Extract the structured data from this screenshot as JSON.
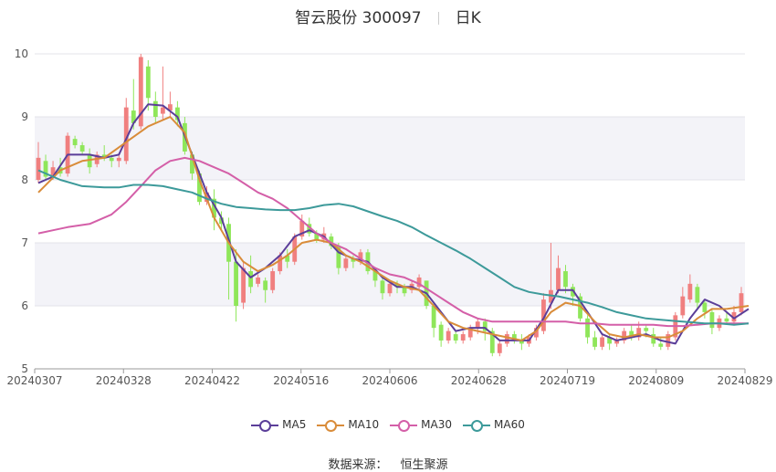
{
  "header": {
    "title": "智云股份 300097",
    "period": "日K"
  },
  "source": {
    "label": "数据来源：",
    "name": "恒生聚源"
  },
  "legend": [
    {
      "name": "MA5",
      "color": "#5b3e99"
    },
    {
      "name": "MA10",
      "color": "#d98c3a"
    },
    {
      "name": "MA30",
      "color": "#d45fa8"
    },
    {
      "name": "MA60",
      "color": "#3d9a9a"
    }
  ],
  "chart_data": {
    "type": "candlestick",
    "x_ticks": [
      "20240307",
      "20240328",
      "20240422",
      "20240516",
      "20240606",
      "20240628",
      "20240719",
      "20240809",
      "20240829"
    ],
    "y_ticks": [
      "5",
      "6",
      "7",
      "8",
      "9",
      "10"
    ],
    "ylim": [
      5,
      10
    ],
    "up_color": "#f07f7f",
    "down_color": "#8fe65a",
    "ohlc": [
      [
        8.0,
        8.35,
        7.95,
        8.6
      ],
      [
        8.3,
        8.05,
        8.0,
        8.4
      ],
      [
        8.05,
        8.2,
        8.0,
        8.3
      ],
      [
        8.2,
        8.1,
        8.05,
        8.35
      ],
      [
        8.1,
        8.7,
        8.05,
        8.75
      ],
      [
        8.65,
        8.55,
        8.5,
        8.7
      ],
      [
        8.55,
        8.45,
        8.4,
        8.6
      ],
      [
        8.4,
        8.2,
        8.1,
        8.5
      ],
      [
        8.25,
        8.4,
        8.2,
        8.45
      ],
      [
        8.4,
        8.35,
        8.3,
        8.55
      ],
      [
        8.35,
        8.3,
        8.2,
        8.4
      ],
      [
        8.3,
        8.35,
        8.2,
        8.4
      ],
      [
        8.3,
        9.15,
        8.25,
        9.3
      ],
      [
        9.1,
        8.9,
        8.8,
        9.6
      ],
      [
        8.85,
        9.95,
        8.8,
        10.0
      ],
      [
        9.8,
        9.3,
        9.1,
        9.9
      ],
      [
        9.25,
        9.0,
        8.9,
        9.4
      ],
      [
        9.05,
        9.15,
        8.95,
        9.8
      ],
      [
        9.1,
        9.2,
        9.0,
        9.4
      ],
      [
        9.15,
        8.95,
        8.85,
        9.25
      ],
      [
        8.9,
        8.45,
        8.4,
        9.0
      ],
      [
        8.4,
        8.1,
        8.0,
        8.45
      ],
      [
        8.1,
        7.65,
        7.6,
        8.15
      ],
      [
        7.65,
        7.8,
        7.6,
        7.9
      ],
      [
        7.7,
        7.4,
        7.2,
        7.85
      ],
      [
        7.4,
        7.3,
        7.2,
        7.5
      ],
      [
        7.3,
        6.7,
        6.1,
        7.4
      ],
      [
        6.7,
        6.0,
        5.75,
        6.9
      ],
      [
        6.05,
        6.6,
        5.95,
        6.7
      ],
      [
        6.55,
        6.3,
        6.2,
        6.8
      ],
      [
        6.35,
        6.45,
        6.3,
        6.5
      ],
      [
        6.4,
        6.25,
        6.05,
        6.45
      ],
      [
        6.25,
        6.55,
        6.2,
        6.6
      ],
      [
        6.55,
        6.8,
        6.5,
        6.85
      ],
      [
        6.8,
        6.7,
        6.6,
        6.9
      ],
      [
        6.7,
        7.1,
        6.65,
        7.15
      ],
      [
        7.1,
        7.35,
        7.05,
        7.45
      ],
      [
        7.3,
        7.15,
        7.1,
        7.4
      ],
      [
        7.15,
        7.05,
        7.0,
        7.2
      ],
      [
        7.05,
        7.15,
        7.0,
        7.25
      ],
      [
        7.1,
        6.95,
        6.9,
        7.15
      ],
      [
        6.95,
        6.6,
        6.5,
        7.0
      ],
      [
        6.6,
        6.75,
        6.55,
        6.8
      ],
      [
        6.75,
        6.7,
        6.6,
        6.8
      ],
      [
        6.7,
        6.85,
        6.65,
        6.9
      ],
      [
        6.85,
        6.55,
        6.5,
        6.9
      ],
      [
        6.55,
        6.4,
        6.3,
        6.6
      ],
      [
        6.4,
        6.2,
        6.1,
        6.45
      ],
      [
        6.2,
        6.35,
        6.15,
        6.4
      ],
      [
        6.35,
        6.3,
        6.2,
        6.4
      ],
      [
        6.3,
        6.2,
        6.15,
        6.35
      ],
      [
        6.25,
        6.35,
        6.2,
        6.4
      ],
      [
        6.3,
        6.45,
        6.25,
        6.5
      ],
      [
        6.4,
        6.0,
        5.95,
        6.4
      ],
      [
        6.0,
        5.65,
        5.5,
        6.05
      ],
      [
        5.7,
        5.45,
        5.35,
        5.75
      ],
      [
        5.45,
        5.6,
        5.4,
        5.65
      ],
      [
        5.55,
        5.45,
        5.4,
        5.6
      ],
      [
        5.45,
        5.55,
        5.4,
        5.6
      ],
      [
        5.5,
        5.65,
        5.45,
        5.7
      ],
      [
        5.65,
        5.75,
        5.55,
        5.8
      ],
      [
        5.75,
        5.6,
        5.45,
        5.8
      ],
      [
        5.6,
        5.25,
        5.2,
        5.65
      ],
      [
        5.25,
        5.4,
        5.2,
        5.45
      ],
      [
        5.4,
        5.55,
        5.35,
        5.6
      ],
      [
        5.55,
        5.45,
        5.4,
        5.6
      ],
      [
        5.45,
        5.4,
        5.3,
        5.55
      ],
      [
        5.4,
        5.5,
        5.35,
        5.55
      ],
      [
        5.5,
        5.65,
        5.45,
        5.7
      ],
      [
        5.6,
        6.1,
        5.55,
        6.2
      ],
      [
        6.05,
        6.25,
        5.95,
        7.0
      ],
      [
        6.25,
        6.6,
        6.2,
        6.8
      ],
      [
        6.55,
        6.3,
        6.2,
        6.65
      ],
      [
        6.3,
        6.15,
        6.0,
        6.35
      ],
      [
        6.15,
        5.8,
        5.75,
        6.2
      ],
      [
        5.8,
        5.5,
        5.4,
        5.85
      ],
      [
        5.5,
        5.35,
        5.3,
        5.6
      ],
      [
        5.35,
        5.5,
        5.3,
        5.55
      ],
      [
        5.5,
        5.4,
        5.3,
        5.55
      ],
      [
        5.4,
        5.45,
        5.35,
        5.5
      ],
      [
        5.45,
        5.6,
        5.4,
        5.65
      ],
      [
        5.6,
        5.5,
        5.45,
        5.7
      ],
      [
        5.5,
        5.65,
        5.45,
        5.75
      ],
      [
        5.65,
        5.6,
        5.5,
        5.7
      ],
      [
        5.55,
        5.4,
        5.35,
        5.65
      ],
      [
        5.4,
        5.35,
        5.3,
        5.5
      ],
      [
        5.35,
        5.55,
        5.3,
        5.6
      ],
      [
        5.5,
        5.85,
        5.45,
        5.9
      ],
      [
        5.85,
        6.15,
        5.8,
        6.3
      ],
      [
        6.1,
        6.35,
        6.05,
        6.5
      ],
      [
        6.3,
        6.05,
        5.95,
        6.35
      ],
      [
        6.05,
        5.9,
        5.8,
        6.1
      ],
      [
        5.9,
        5.65,
        5.55,
        5.95
      ],
      [
        5.65,
        5.8,
        5.6,
        5.85
      ],
      [
        5.8,
        5.75,
        5.7,
        5.9
      ],
      [
        5.75,
        5.9,
        5.7,
        6.0
      ],
      [
        5.9,
        6.2,
        5.85,
        6.3
      ]
    ],
    "series": [
      {
        "name": "MA5",
        "color": "#5b3e99",
        "values": [
          [
            0,
            7.95
          ],
          [
            2,
            8.05
          ],
          [
            4,
            8.4
          ],
          [
            7,
            8.4
          ],
          [
            9,
            8.35
          ],
          [
            11,
            8.4
          ],
          [
            13,
            8.9
          ],
          [
            15,
            9.2
          ],
          [
            17,
            9.18
          ],
          [
            19,
            9.0
          ],
          [
            21,
            8.4
          ],
          [
            23,
            7.8
          ],
          [
            25,
            7.4
          ],
          [
            27,
            6.7
          ],
          [
            29,
            6.45
          ],
          [
            31,
            6.6
          ],
          [
            33,
            6.8
          ],
          [
            35,
            7.1
          ],
          [
            37,
            7.2
          ],
          [
            39,
            7.1
          ],
          [
            41,
            6.85
          ],
          [
            43,
            6.75
          ],
          [
            45,
            6.7
          ],
          [
            47,
            6.45
          ],
          [
            49,
            6.3
          ],
          [
            51,
            6.3
          ],
          [
            53,
            6.2
          ],
          [
            55,
            5.9
          ],
          [
            57,
            5.6
          ],
          [
            59,
            5.65
          ],
          [
            61,
            5.65
          ],
          [
            63,
            5.45
          ],
          [
            65,
            5.45
          ],
          [
            67,
            5.45
          ],
          [
            69,
            5.8
          ],
          [
            71,
            6.25
          ],
          [
            73,
            6.25
          ],
          [
            75,
            5.9
          ],
          [
            77,
            5.55
          ],
          [
            79,
            5.45
          ],
          [
            81,
            5.5
          ],
          [
            83,
            5.55
          ],
          [
            85,
            5.45
          ],
          [
            87,
            5.4
          ],
          [
            89,
            5.8
          ],
          [
            91,
            6.1
          ],
          [
            93,
            6.0
          ],
          [
            95,
            5.8
          ],
          [
            97,
            5.95
          ]
        ]
      },
      {
        "name": "MA10",
        "color": "#d98c3a",
        "values": [
          [
            0,
            7.8
          ],
          [
            3,
            8.15
          ],
          [
            6,
            8.3
          ],
          [
            9,
            8.35
          ],
          [
            12,
            8.6
          ],
          [
            15,
            8.85
          ],
          [
            18,
            9.0
          ],
          [
            20,
            8.75
          ],
          [
            22,
            8.0
          ],
          [
            24,
            7.4
          ],
          [
            26,
            7.0
          ],
          [
            28,
            6.7
          ],
          [
            30,
            6.55
          ],
          [
            32,
            6.65
          ],
          [
            34,
            6.8
          ],
          [
            36,
            7.0
          ],
          [
            38,
            7.05
          ],
          [
            40,
            7.0
          ],
          [
            42,
            6.8
          ],
          [
            44,
            6.7
          ],
          [
            46,
            6.55
          ],
          [
            48,
            6.4
          ],
          [
            50,
            6.3
          ],
          [
            52,
            6.25
          ],
          [
            54,
            6.0
          ],
          [
            56,
            5.75
          ],
          [
            58,
            5.65
          ],
          [
            60,
            5.6
          ],
          [
            62,
            5.55
          ],
          [
            64,
            5.5
          ],
          [
            66,
            5.45
          ],
          [
            68,
            5.6
          ],
          [
            70,
            5.9
          ],
          [
            72,
            6.05
          ],
          [
            74,
            6.0
          ],
          [
            76,
            5.75
          ],
          [
            78,
            5.55
          ],
          [
            80,
            5.5
          ],
          [
            82,
            5.55
          ],
          [
            84,
            5.5
          ],
          [
            86,
            5.5
          ],
          [
            88,
            5.6
          ],
          [
            90,
            5.8
          ],
          [
            92,
            5.95
          ],
          [
            94,
            5.95
          ],
          [
            97,
            6.0
          ]
        ]
      },
      {
        "name": "MA30",
        "color": "#d45fa8",
        "values": [
          [
            0,
            7.15
          ],
          [
            2,
            7.2
          ],
          [
            4,
            7.25
          ],
          [
            7,
            7.3
          ],
          [
            10,
            7.45
          ],
          [
            12,
            7.65
          ],
          [
            14,
            7.9
          ],
          [
            16,
            8.15
          ],
          [
            18,
            8.3
          ],
          [
            20,
            8.35
          ],
          [
            22,
            8.3
          ],
          [
            24,
            8.2
          ],
          [
            26,
            8.1
          ],
          [
            28,
            7.95
          ],
          [
            30,
            7.8
          ],
          [
            32,
            7.7
          ],
          [
            34,
            7.55
          ],
          [
            36,
            7.35
          ],
          [
            38,
            7.15
          ],
          [
            40,
            7.0
          ],
          [
            42,
            6.9
          ],
          [
            44,
            6.75
          ],
          [
            46,
            6.6
          ],
          [
            48,
            6.5
          ],
          [
            50,
            6.45
          ],
          [
            52,
            6.35
          ],
          [
            54,
            6.2
          ],
          [
            56,
            6.05
          ],
          [
            58,
            5.9
          ],
          [
            60,
            5.8
          ],
          [
            62,
            5.75
          ],
          [
            64,
            5.75
          ],
          [
            66,
            5.75
          ],
          [
            68,
            5.75
          ],
          [
            70,
            5.75
          ],
          [
            72,
            5.75
          ],
          [
            74,
            5.72
          ],
          [
            76,
            5.72
          ],
          [
            78,
            5.7
          ],
          [
            80,
            5.7
          ],
          [
            82,
            5.7
          ],
          [
            84,
            5.7
          ],
          [
            86,
            5.68
          ],
          [
            88,
            5.68
          ],
          [
            90,
            5.7
          ],
          [
            92,
            5.72
          ],
          [
            94,
            5.72
          ],
          [
            97,
            5.72
          ]
        ]
      },
      {
        "name": "MA60",
        "color": "#3d9a9a",
        "values": [
          [
            0,
            8.15
          ],
          [
            3,
            8.0
          ],
          [
            6,
            7.9
          ],
          [
            9,
            7.88
          ],
          [
            11,
            7.88
          ],
          [
            13,
            7.92
          ],
          [
            15,
            7.92
          ],
          [
            17,
            7.9
          ],
          [
            19,
            7.85
          ],
          [
            21,
            7.8
          ],
          [
            23,
            7.7
          ],
          [
            25,
            7.62
          ],
          [
            27,
            7.57
          ],
          [
            29,
            7.55
          ],
          [
            31,
            7.53
          ],
          [
            33,
            7.52
          ],
          [
            35,
            7.52
          ],
          [
            37,
            7.55
          ],
          [
            39,
            7.6
          ],
          [
            41,
            7.62
          ],
          [
            43,
            7.58
          ],
          [
            45,
            7.5
          ],
          [
            47,
            7.42
          ],
          [
            49,
            7.35
          ],
          [
            51,
            7.25
          ],
          [
            53,
            7.12
          ],
          [
            55,
            7.0
          ],
          [
            57,
            6.88
          ],
          [
            59,
            6.75
          ],
          [
            61,
            6.6
          ],
          [
            63,
            6.45
          ],
          [
            65,
            6.3
          ],
          [
            67,
            6.22
          ],
          [
            69,
            6.18
          ],
          [
            71,
            6.15
          ],
          [
            73,
            6.1
          ],
          [
            75,
            6.05
          ],
          [
            77,
            5.98
          ],
          [
            79,
            5.9
          ],
          [
            81,
            5.85
          ],
          [
            83,
            5.8
          ],
          [
            85,
            5.78
          ],
          [
            87,
            5.76
          ],
          [
            89,
            5.74
          ],
          [
            91,
            5.72
          ],
          [
            93,
            5.72
          ],
          [
            95,
            5.7
          ],
          [
            97,
            5.72
          ]
        ]
      }
    ]
  }
}
